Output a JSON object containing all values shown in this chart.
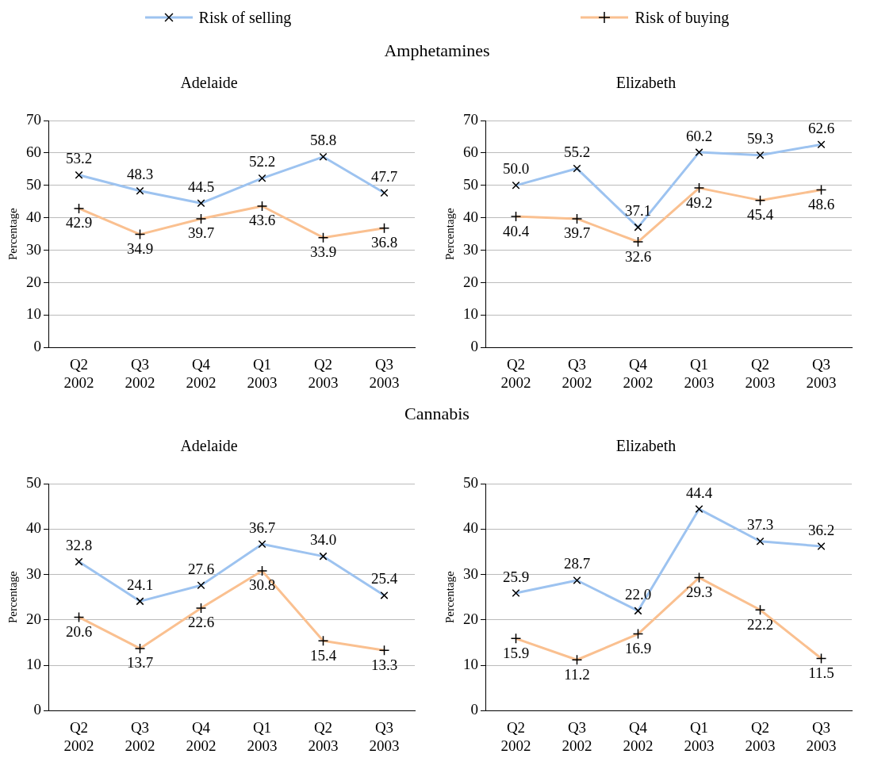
{
  "chart_data": [
    {
      "type": "line",
      "subtitle": "Amphetamines",
      "title": "Adelaide",
      "ylabel": "Percentage",
      "categories": [
        "Q2 2002",
        "Q3 2002",
        "Q4 2002",
        "Q1 2003",
        "Q2 2003",
        "Q3 2003"
      ],
      "ylim": [
        0,
        70
      ],
      "yticks": [
        0,
        10,
        20,
        30,
        40,
        50,
        60,
        70
      ],
      "grid": "y",
      "legend": "top",
      "marker": "cross",
      "series": [
        {
          "name": "Risk of selling",
          "color": "#9dc3f0",
          "values": [
            53.2,
            48.3,
            44.5,
            52.2,
            58.8,
            47.7
          ],
          "value_labels": [
            "53.2",
            "48.3",
            "44.5",
            "52.2",
            "58.8",
            "47.7"
          ]
        },
        {
          "name": "Risk of buying",
          "color": "#fac090",
          "values": [
            42.9,
            34.9,
            39.7,
            43.6,
            33.9,
            36.8
          ],
          "value_labels": [
            "42.9",
            "34.9",
            "39.7",
            "43.6",
            "33.9",
            "36.8"
          ]
        }
      ]
    },
    {
      "type": "line",
      "title": "Elizabeth",
      "ylabel": "Percentage",
      "categories": [
        "Q2 2002",
        "Q3 2002",
        "Q4 2002",
        "Q1 2003",
        "Q2 2003",
        "Q3 2003"
      ],
      "ylim": [
        0,
        70
      ],
      "yticks": [
        0,
        10,
        20,
        30,
        40,
        50,
        60,
        70
      ],
      "grid": "y",
      "marker": "cross",
      "series": [
        {
          "color": "#9dc3f0",
          "values": [
            50.0,
            55.2,
            37.1,
            60.2,
            59.3,
            62.6
          ],
          "value_labels": [
            "50.0",
            "55.2",
            "37.1",
            "60.2",
            "59.3",
            "62.6"
          ]
        },
        {
          "color": "#fac090",
          "values": [
            40.4,
            39.7,
            32.6,
            49.2,
            45.4,
            48.6
          ],
          "value_labels": [
            "40.4",
            "39.7",
            "32.6",
            "49.2",
            "45.4",
            "48.6"
          ]
        }
      ]
    },
    {
      "type": "line",
      "subtitle": "Cannabis",
      "title": "Adelaide",
      "ylabel": "Percentage",
      "categories": [
        "Q2 2002",
        "Q3 2002",
        "Q4 2002",
        "Q1 2003",
        "Q2 2003",
        "Q3 2003"
      ],
      "ylim": [
        0,
        50
      ],
      "yticks": [
        0,
        10,
        20,
        30,
        40,
        50
      ],
      "grid": "y",
      "marker": "cross",
      "series": [
        {
          "color": "#9dc3f0",
          "values": [
            32.8,
            24.1,
            27.6,
            36.7,
            34.0,
            25.4
          ],
          "value_labels": [
            "32.8",
            "24.1",
            "27.6",
            "36.7",
            "34.0",
            "25.4"
          ]
        },
        {
          "color": "#fac090",
          "values": [
            20.6,
            13.7,
            22.6,
            30.8,
            15.4,
            13.3
          ],
          "value_labels": [
            "20.6",
            "13.7",
            "22.6",
            "30.8",
            "15.4",
            "13.3"
          ]
        }
      ]
    },
    {
      "type": "line",
      "title": "Elizabeth",
      "ylabel": "Percentage",
      "categories": [
        "Q2 2002",
        "Q3 2002",
        "Q4 2002",
        "Q1 2003",
        "Q2 2003",
        "Q3 2003"
      ],
      "ylim": [
        0,
        50
      ],
      "yticks": [
        0,
        10,
        20,
        30,
        40,
        50
      ],
      "grid": "y",
      "marker": "cross",
      "series": [
        {
          "color": "#9dc3f0",
          "values": [
            25.9,
            28.7,
            22.0,
            44.4,
            37.3,
            36.2
          ],
          "value_labels": [
            "25.9",
            "28.7",
            "22.0",
            "44.4",
            "37.3",
            "36.2"
          ]
        },
        {
          "color": "#fac090",
          "values": [
            15.9,
            11.2,
            16.9,
            29.3,
            22.2,
            11.5
          ],
          "value_labels": [
            "15.9",
            "11.2",
            "16.9",
            "29.3",
            "22.2",
            "11.5"
          ]
        }
      ]
    }
  ]
}
